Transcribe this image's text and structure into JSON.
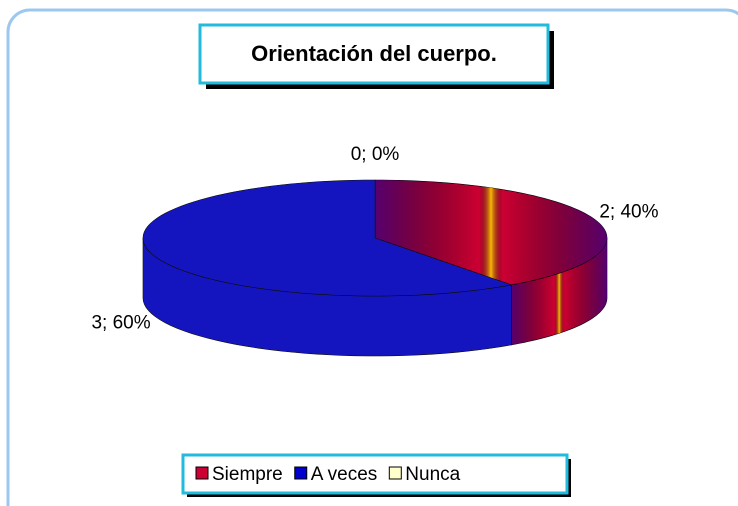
{
  "chart_data": {
    "type": "pie",
    "title": "Orientación del cuerpo.",
    "categories": [
      "Siempre",
      "A veces",
      "Nunca"
    ],
    "values": [
      2,
      3,
      0
    ],
    "value_labels": [
      "2; 40%",
      "3; 60%",
      "0; 0%"
    ],
    "colors": [
      "#cc0033",
      "#0000cc",
      "#ffffcc"
    ],
    "legend": "bottom"
  }
}
